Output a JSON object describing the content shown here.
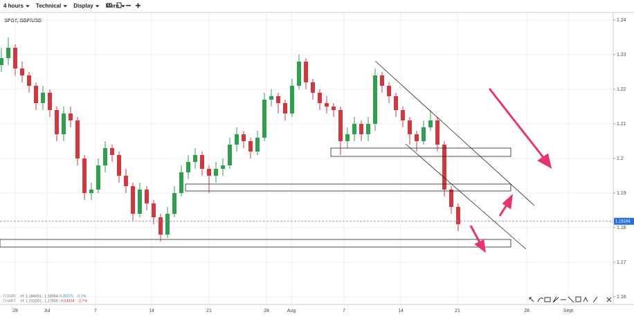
{
  "toolbar": {
    "items": [
      "4 hours",
      "Technical",
      "Display",
      "More"
    ]
  },
  "info": {
    "rows": [
      [
        "TODAY",
        "H: 1.18469",
        "L: 1.18054",
        "0.00075",
        "0.1%"
      ],
      [
        "CHART",
        "H: 1.23328",
        "L: 1.17600",
        "-0.04494",
        "-3.7%"
      ]
    ]
  },
  "chart_data": {
    "type": "candlestick",
    "title": "SPOT, GBP/USD",
    "open": [
      1.227,
      1.229,
      1.232,
      1.226,
      1.224,
      1.221,
      1.216,
      1.219,
      1.214,
      1.207,
      1.213,
      1.211,
      1.2,
      1.19,
      1.191,
      1.198,
      1.203,
      1.201,
      1.195,
      1.192,
      1.184,
      1.191,
      1.187,
      1.183,
      1.178,
      1.184,
      1.19,
      1.196,
      1.199,
      1.201,
      1.197,
      1.195,
      1.197,
      1.198,
      1.204,
      1.207,
      1.205,
      1.202,
      1.206,
      1.217,
      1.218,
      1.216,
      1.213,
      1.221,
      1.228,
      1.222,
      1.219,
      1.216,
      1.215,
      1.214,
      1.205,
      1.207,
      1.21,
      1.207,
      1.21,
      1.224,
      1.221,
      1.218,
      1.214,
      1.211,
      1.207,
      1.205,
      1.209,
      1.211,
      1.204,
      1.191,
      1.186
    ],
    "high": [
      1.232,
      1.235,
      1.233,
      1.228,
      1.225,
      1.222,
      1.221,
      1.22,
      1.215,
      1.215,
      1.215,
      1.212,
      1.201,
      1.193,
      1.2,
      1.205,
      1.204,
      1.202,
      1.197,
      1.193,
      1.193,
      1.192,
      1.188,
      1.184,
      1.186,
      1.192,
      1.198,
      1.201,
      1.203,
      1.202,
      1.198,
      1.199,
      1.2,
      1.206,
      1.209,
      1.208,
      1.206,
      1.208,
      1.219,
      1.22,
      1.219,
      1.217,
      1.223,
      1.23,
      1.229,
      1.223,
      1.22,
      1.218,
      1.216,
      1.215,
      1.209,
      1.212,
      1.211,
      1.212,
      1.226,
      1.225,
      1.222,
      1.219,
      1.215,
      1.212,
      1.208,
      1.211,
      1.214,
      1.212,
      1.205,
      1.192,
      1.187
    ],
    "low": [
      1.225,
      1.227,
      1.224,
      1.222,
      1.219,
      1.214,
      1.214,
      1.212,
      1.205,
      1.205,
      1.209,
      1.198,
      1.188,
      1.188,
      1.19,
      1.196,
      1.199,
      1.193,
      1.19,
      1.182,
      1.183,
      1.185,
      1.181,
      1.176,
      1.177,
      1.183,
      1.189,
      1.194,
      1.197,
      1.195,
      1.19,
      1.193,
      1.195,
      1.197,
      1.202,
      1.203,
      1.2,
      1.201,
      1.205,
      1.215,
      1.213,
      1.211,
      1.212,
      1.22,
      1.22,
      1.217,
      1.214,
      1.213,
      1.212,
      1.201,
      1.203,
      1.205,
      1.205,
      1.205,
      1.208,
      1.219,
      1.216,
      1.212,
      1.209,
      1.204,
      1.202,
      1.204,
      1.208,
      1.202,
      1.189,
      1.184,
      1.179
    ],
    "close": [
      1.229,
      1.232,
      1.226,
      1.224,
      1.221,
      1.216,
      1.219,
      1.214,
      1.207,
      1.213,
      1.211,
      1.2,
      1.19,
      1.191,
      1.198,
      1.203,
      1.201,
      1.195,
      1.192,
      1.184,
      1.191,
      1.187,
      1.183,
      1.178,
      1.184,
      1.19,
      1.196,
      1.199,
      1.201,
      1.197,
      1.195,
      1.197,
      1.198,
      1.204,
      1.207,
      1.205,
      1.202,
      1.206,
      1.217,
      1.218,
      1.216,
      1.213,
      1.221,
      1.228,
      1.222,
      1.219,
      1.216,
      1.215,
      1.214,
      1.205,
      1.207,
      1.21,
      1.207,
      1.21,
      1.224,
      1.221,
      1.218,
      1.214,
      1.211,
      1.207,
      1.205,
      1.209,
      1.211,
      1.204,
      1.191,
      1.186,
      1.181
    ],
    "up_color": "#2e9e4f",
    "down_color": "#d0373f",
    "last_price": 1.18184,
    "xlim": [
      -0.2,
      88.4
    ],
    "xticks": [
      {
        "value": 2.0,
        "label": "28"
      },
      {
        "value": 6.6,
        "label": "Jul"
      },
      {
        "value": 13.6,
        "label": "7"
      },
      {
        "value": 21.7,
        "label": "14"
      },
      {
        "value": 30.0,
        "label": "21"
      },
      {
        "value": 38.3,
        "label": "28"
      },
      {
        "value": 41.9,
        "label": "Aug"
      },
      {
        "value": 49.5,
        "label": "7"
      },
      {
        "value": 57.7,
        "label": "14"
      },
      {
        "value": 65.9,
        "label": "21"
      },
      {
        "value": 75.9,
        "label": "28"
      },
      {
        "value": 81.9,
        "label": "Sept"
      }
    ],
    "ylim": [
      1.1578,
      1.2422
    ],
    "yticks": [
      1.16,
      1.17,
      1.18,
      1.19,
      1.2,
      1.21,
      1.22,
      1.23,
      1.24
    ],
    "grid": true
  }
}
